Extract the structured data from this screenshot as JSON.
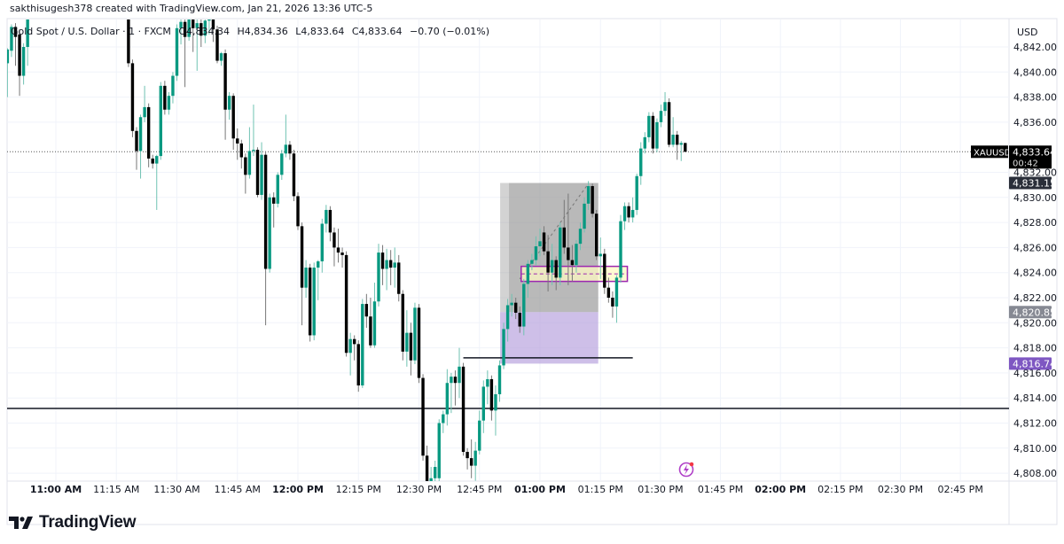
{
  "header": {
    "attribution": "sakthisugesh378 created with TradingView.com, Jan 21, 2026 13:36 UTC-5"
  },
  "legend": {
    "symbol_description": "Gold Spot / U.S. Dollar · 1 · FXCM",
    "open": "O4,834.34",
    "high": "H4,834.36",
    "low": "L4,833.64",
    "close": "C4,833.64",
    "change": "−0.70 (−0.01%)"
  },
  "price_axis": {
    "currency": "USD",
    "ticks": [
      "4,842.00",
      "4,840.00",
      "4,838.00",
      "4,836.00",
      "4,832.00",
      "4,830.00",
      "4,828.00",
      "4,826.00",
      "4,824.00",
      "4,822.00",
      "4,820.00",
      "4,818.00",
      "4,816.00",
      "4,814.00",
      "4,812.00",
      "4,810.00",
      "4,808.00"
    ],
    "current_price_label": {
      "symbol": "XAUUSD",
      "price": "4,833.64",
      "countdown": "00:42"
    },
    "labels": [
      {
        "text": "4,831.15",
        "color": "#2a2e39"
      },
      {
        "text": "4,820.85",
        "color": "#868993"
      },
      {
        "text": "4,816.74",
        "color": "#7e57c2"
      }
    ]
  },
  "time_axis": {
    "ticks": [
      {
        "label": "11:00 AM",
        "bold": true
      },
      {
        "label": "11:15 AM",
        "bold": false
      },
      {
        "label": "11:30 AM",
        "bold": false
      },
      {
        "label": "11:45 AM",
        "bold": false
      },
      {
        "label": "12:00 PM",
        "bold": true
      },
      {
        "label": "12:15 PM",
        "bold": false
      },
      {
        "label": "12:30 PM",
        "bold": false
      },
      {
        "label": "12:45 PM",
        "bold": false
      },
      {
        "label": "01:00 PM",
        "bold": true
      },
      {
        "label": "01:15 PM",
        "bold": false
      },
      {
        "label": "01:30 PM",
        "bold": false
      },
      {
        "label": "01:45 PM",
        "bold": false
      },
      {
        "label": "02:00 PM",
        "bold": true
      },
      {
        "label": "02:15 PM",
        "bold": false
      },
      {
        "label": "02:30 PM",
        "bold": false
      },
      {
        "label": "02:45 PM",
        "bold": false
      }
    ]
  },
  "footer": {
    "brand": "TradingView",
    "logo_icon": "tradingview-logo-icon"
  },
  "alert_icon": "lightning-alert-icon",
  "colors": {
    "up": "#089981",
    "down": "#000000",
    "grid": "#f0f3fa",
    "position_box": "#9e9e9e",
    "stop_box": "#b39ddb",
    "zone_fill": "#fff9c4",
    "zone_border": "#9c27b0"
  },
  "chart_data": {
    "type": "candlestick",
    "symbol": "XAUUSD",
    "interval": "1",
    "x_range": [
      "10:48",
      "14:50"
    ],
    "ylim": [
      4807.4,
      4844.2
    ],
    "grid": true,
    "candle_format": [
      "time",
      "open",
      "high",
      "low",
      "close"
    ],
    "candles": [
      [
        "10:48",
        4840.7,
        4841.9,
        4838.0,
        4841.8
      ],
      [
        "10:49",
        4841.7,
        4843.8,
        4841.2,
        4843.6
      ],
      [
        "10:50",
        4843.6,
        4843.9,
        4840.5,
        4842.8
      ],
      [
        "10:51",
        4843.0,
        4843.4,
        4838.1,
        4839.7
      ],
      [
        "10:52",
        4839.7,
        4842.3,
        4839.0,
        4842.0
      ],
      [
        "10:53",
        4842.0,
        4844.6,
        4840.5,
        4844.5
      ],
      [
        "11:18",
        4844.6,
        4845.0,
        4840.4,
        4840.7
      ],
      [
        "11:19",
        4840.7,
        4841.0,
        4834.8,
        4835.3
      ],
      [
        "11:20",
        4835.3,
        4835.6,
        4832.2,
        4833.7
      ],
      [
        "11:21",
        4833.7,
        4836.6,
        4831.5,
        4836.4
      ],
      [
        "11:22",
        4836.4,
        4838.9,
        4836.0,
        4837.2
      ],
      [
        "11:23",
        4837.2,
        4837.5,
        4832.4,
        4833.1
      ],
      [
        "11:24",
        4833.1,
        4833.4,
        4832.3,
        4832.7
      ],
      [
        "11:25",
        4832.7,
        4833.4,
        4829.0,
        4833.3
      ],
      [
        "11:26",
        4833.3,
        4839.2,
        4833.0,
        4838.9
      ],
      [
        "11:27",
        4838.9,
        4839.3,
        4836.6,
        4837.0
      ],
      [
        "11:28",
        4837.0,
        4838.4,
        4836.6,
        4838.1
      ],
      [
        "11:29",
        4838.1,
        4840.0,
        4837.5,
        4839.7
      ],
      [
        "11:30",
        4839.7,
        4843.8,
        4839.3,
        4843.5
      ],
      [
        "11:31",
        4843.5,
        4844.8,
        4842.2,
        4844.0
      ],
      [
        "11:32",
        4844.0,
        4844.6,
        4838.8,
        4842.8
      ],
      [
        "11:33",
        4842.8,
        4844.5,
        4842.5,
        4844.3
      ],
      [
        "11:34",
        4844.3,
        4844.9,
        4841.6,
        4843.5
      ],
      [
        "11:35",
        4843.5,
        4844.4,
        4840.1,
        4843.9
      ],
      [
        "11:36",
        4843.9,
        4844.2,
        4842.0,
        4842.9
      ],
      [
        "11:37",
        4842.9,
        4844.5,
        4842.3,
        4844.1
      ],
      [
        "11:38",
        4844.1,
        4844.9,
        4843.0,
        4844.4
      ],
      [
        "11:39",
        4844.4,
        4844.8,
        4842.4,
        4843.4
      ],
      [
        "11:40",
        4843.4,
        4843.7,
        4840.7,
        4840.9
      ],
      [
        "11:41",
        4840.9,
        4841.6,
        4840.5,
        4841.5
      ],
      [
        "11:42",
        4841.5,
        4841.8,
        4834.6,
        4837.0
      ],
      [
        "11:43",
        4837.0,
        4838.4,
        4836.2,
        4838.1
      ],
      [
        "11:44",
        4838.1,
        4838.3,
        4833.8,
        4834.7
      ],
      [
        "11:45",
        4834.7,
        4835.5,
        4833.0,
        4834.3
      ],
      [
        "11:46",
        4834.3,
        4834.6,
        4832.3,
        4833.2
      ],
      [
        "11:47",
        4833.2,
        4833.5,
        4830.3,
        4831.8
      ],
      [
        "11:48",
        4831.8,
        4835.6,
        4831.5,
        4833.7
      ],
      [
        "11:49",
        4833.7,
        4837.4,
        4833.3,
        4833.8
      ],
      [
        "11:50",
        4833.8,
        4834.0,
        4830.0,
        4830.2
      ],
      [
        "11:51",
        4830.2,
        4834.4,
        4829.8,
        4833.4
      ],
      [
        "11:52",
        4833.4,
        4833.7,
        4819.8,
        4824.3
      ],
      [
        "11:53",
        4824.3,
        4830.3,
        4824.0,
        4830.0
      ],
      [
        "11:54",
        4830.0,
        4830.4,
        4827.6,
        4829.5
      ],
      [
        "11:55",
        4829.5,
        4832.0,
        4829.2,
        4831.8
      ],
      [
        "11:56",
        4831.8,
        4833.8,
        4831.4,
        4833.5
      ],
      [
        "11:57",
        4833.5,
        4836.6,
        4833.2,
        4834.2
      ],
      [
        "11:58",
        4834.2,
        4834.5,
        4833.0,
        4833.5
      ],
      [
        "11:59",
        4833.5,
        4833.8,
        4829.7,
        4830.1
      ],
      [
        "12:00",
        4830.1,
        4830.4,
        4827.4,
        4827.7
      ],
      [
        "12:01",
        4827.7,
        4828.0,
        4819.8,
        4822.8
      ],
      [
        "12:02",
        4822.8,
        4825.0,
        4822.0,
        4824.4
      ],
      [
        "12:03",
        4824.4,
        4824.7,
        4818.5,
        4819.0
      ],
      [
        "12:04",
        4819.0,
        4824.8,
        4818.6,
        4824.4
      ],
      [
        "12:05",
        4824.4,
        4825.0,
        4821.8,
        4824.9
      ],
      [
        "12:06",
        4824.9,
        4828.3,
        4824.0,
        4827.9
      ],
      [
        "12:07",
        4827.9,
        4829.4,
        4827.2,
        4829.0
      ],
      [
        "12:08",
        4829.0,
        4829.3,
        4826.5,
        4827.2
      ],
      [
        "12:09",
        4827.2,
        4827.6,
        4824.5,
        4826.0
      ],
      [
        "12:10",
        4826.0,
        4827.5,
        4824.8,
        4825.6
      ],
      [
        "12:11",
        4825.6,
        4826.0,
        4824.4,
        4825.4
      ],
      [
        "12:12",
        4825.4,
        4825.7,
        4817.3,
        4817.6
      ],
      [
        "12:13",
        4817.6,
        4819.2,
        4815.8,
        4818.7
      ],
      [
        "12:14",
        4818.7,
        4819.0,
        4817.0,
        4818.3
      ],
      [
        "12:15",
        4818.3,
        4818.6,
        4814.5,
        4815.0
      ],
      [
        "12:16",
        4815.0,
        4821.9,
        4814.8,
        4821.5
      ],
      [
        "12:17",
        4821.5,
        4822.3,
        4819.6,
        4820.5
      ],
      [
        "12:18",
        4820.5,
        4822.0,
        4818.0,
        4818.2
      ],
      [
        "12:19",
        4818.2,
        4823.2,
        4818.0,
        4821.7
      ],
      [
        "12:20",
        4821.7,
        4826.3,
        4821.3,
        4825.6
      ],
      [
        "12:21",
        4825.6,
        4826.2,
        4823.0,
        4824.3
      ],
      [
        "12:22",
        4824.3,
        4825.9,
        4822.6,
        4825.0
      ],
      [
        "12:23",
        4825.0,
        4825.8,
        4823.0,
        4824.4
      ],
      [
        "12:24",
        4824.4,
        4826.0,
        4822.8,
        4824.8
      ],
      [
        "12:25",
        4824.8,
        4825.4,
        4821.7,
        4822.3
      ],
      [
        "12:26",
        4822.3,
        4822.6,
        4817.0,
        4817.7
      ],
      [
        "12:27",
        4817.7,
        4821.0,
        4816.5,
        4819.2
      ],
      [
        "12:28",
        4819.2,
        4820.0,
        4815.8,
        4817.0
      ],
      [
        "12:29",
        4817.0,
        4821.6,
        4816.7,
        4821.2
      ],
      [
        "12:30",
        4821.2,
        4821.5,
        4815.2,
        4815.6
      ],
      [
        "12:31",
        4815.6,
        4815.9,
        4809.0,
        4809.4
      ],
      [
        "12:32",
        4809.4,
        4810.2,
        4806.5,
        4807.2
      ],
      [
        "12:33",
        4807.2,
        4808.5,
        4806.8,
        4807.6
      ],
      [
        "12:34",
        4807.6,
        4809.0,
        4807.0,
        4808.5
      ],
      [
        "12:35",
        4807.6,
        4812.3,
        4807.3,
        4812.0
      ],
      [
        "12:36",
        4812.0,
        4813.0,
        4811.2,
        4812.7
      ],
      [
        "12:37",
        4812.7,
        4816.3,
        4811.8,
        4815.2
      ],
      [
        "12:38",
        4815.2,
        4816.0,
        4812.8,
        4815.7
      ],
      [
        "12:39",
        4815.7,
        4816.2,
        4813.4,
        4815.2
      ],
      [
        "12:40",
        4815.2,
        4818.0,
        4814.0,
        4816.5
      ],
      [
        "12:41",
        4816.5,
        4816.8,
        4809.4,
        4809.7
      ],
      [
        "12:42",
        4809.7,
        4810.0,
        4808.3,
        4809.2
      ],
      [
        "12:43",
        4809.2,
        4810.7,
        4807.6,
        4808.6
      ],
      [
        "12:44",
        4808.6,
        4810.5,
        4807.4,
        4809.8
      ],
      [
        "12:45",
        4809.8,
        4813.0,
        4809.5,
        4812.2
      ],
      [
        "12:46",
        4812.2,
        4815.4,
        4811.2,
        4814.9
      ],
      [
        "12:47",
        4814.9,
        4816.2,
        4813.5,
        4815.5
      ],
      [
        "12:48",
        4815.5,
        4815.8,
        4812.2,
        4813.0
      ],
      [
        "12:49",
        4813.0,
        4815.0,
        4811.0,
        4814.3
      ],
      [
        "12:50",
        4814.3,
        4817.0,
        4813.7,
        4816.6
      ],
      [
        "12:51",
        4816.6,
        4820.0,
        4816.3,
        4819.5
      ],
      [
        "12:52",
        4819.5,
        4821.9,
        4818.5,
        4821.4
      ],
      [
        "12:53",
        4821.4,
        4822.3,
        4820.5,
        4821.6
      ],
      [
        "12:54",
        4821.6,
        4822.0,
        4820.3,
        4820.8
      ],
      [
        "12:55",
        4820.8,
        4821.3,
        4819.2,
        4819.7
      ],
      [
        "12:56",
        4819.7,
        4823.5,
        4819.0,
        4823.1
      ],
      [
        "12:57",
        4823.1,
        4825.0,
        4822.0,
        4824.7
      ],
      [
        "12:58",
        4824.7,
        4825.5,
        4824.2,
        4825.0
      ],
      [
        "12:59",
        4825.0,
        4826.9,
        4824.6,
        4826.1
      ],
      [
        "13:00",
        4826.1,
        4827.5,
        4825.3,
        4826.5
      ],
      [
        "13:01",
        4827.2,
        4827.7,
        4825.4,
        4825.7
      ],
      [
        "13:02",
        4825.7,
        4827.0,
        4822.5,
        4824.0
      ],
      [
        "13:03",
        4824.0,
        4826.3,
        4823.0,
        4825.0
      ],
      [
        "13:04",
        4825.0,
        4825.3,
        4822.6,
        4823.6
      ],
      [
        "13:05",
        4823.6,
        4828.0,
        4823.0,
        4827.6
      ],
      [
        "13:06",
        4827.6,
        4829.8,
        4825.5,
        4826.0
      ],
      [
        "13:07",
        4826.0,
        4830.3,
        4823.0,
        4825.0
      ],
      [
        "13:08",
        4825.0,
        4826.2,
        4823.3,
        4824.6
      ],
      [
        "13:09",
        4824.6,
        4826.6,
        4824.0,
        4826.3
      ],
      [
        "13:10",
        4826.3,
        4828.0,
        4825.8,
        4827.5
      ],
      [
        "13:11",
        4827.5,
        4830.0,
        4827.2,
        4829.5
      ],
      [
        "13:12",
        4829.5,
        4831.3,
        4829.0,
        4830.9
      ],
      [
        "13:13",
        4830.9,
        4831.1,
        4828.4,
        4828.7
      ],
      [
        "13:14",
        4828.7,
        4829.0,
        4825.0,
        4825.3
      ],
      [
        "13:15",
        4825.3,
        4826.8,
        4823.5,
        4825.5
      ],
      [
        "13:16",
        4825.5,
        4825.9,
        4822.3,
        4822.8
      ],
      [
        "13:17",
        4822.8,
        4823.6,
        4821.6,
        4822.0
      ],
      [
        "13:18",
        4822.0,
        4822.5,
        4820.4,
        4821.3
      ],
      [
        "13:19",
        4821.3,
        4823.8,
        4820.0,
        4823.6
      ],
      [
        "13:20",
        4823.6,
        4828.6,
        4823.2,
        4828.1
      ],
      [
        "13:21",
        4828.1,
        4829.6,
        4827.4,
        4829.3
      ],
      [
        "13:22",
        4829.3,
        4829.6,
        4828.0,
        4828.4
      ],
      [
        "13:23",
        4828.4,
        4830.0,
        4828.0,
        4829.0
      ],
      [
        "13:24",
        4829.0,
        4831.9,
        4828.6,
        4831.7
      ],
      [
        "13:25",
        4831.7,
        4834.4,
        4831.0,
        4833.9
      ],
      [
        "13:26",
        4833.9,
        4835.2,
        4833.5,
        4834.8
      ],
      [
        "13:27",
        4834.8,
        4836.8,
        4834.4,
        4836.5
      ],
      [
        "13:28",
        4836.5,
        4836.8,
        4833.5,
        4833.9
      ],
      [
        "13:29",
        4833.9,
        4836.3,
        4833.6,
        4836.0
      ],
      [
        "13:30",
        4836.0,
        4837.4,
        4835.6,
        4836.9
      ],
      [
        "13:31",
        4836.9,
        4838.4,
        4836.5,
        4837.6
      ],
      [
        "13:32",
        4837.6,
        4837.9,
        4834.0,
        4834.2
      ],
      [
        "13:33",
        4834.2,
        4836.4,
        4834.0,
        4835.0
      ],
      [
        "13:34",
        4835.0,
        4835.3,
        4833.0,
        4834.2
      ],
      [
        "13:35",
        4834.2,
        4834.5,
        4832.9,
        4834.34
      ],
      [
        "13:36",
        4834.34,
        4834.36,
        4833.64,
        4833.64
      ]
    ],
    "drawings": {
      "horizontal_line": {
        "price": 4813.17
      },
      "horizontal_ray": {
        "price": 4817.2,
        "from": "12:41",
        "to": "13:23"
      },
      "position": {
        "from": "12:51",
        "to": "13:14",
        "target": 4831.15,
        "entry": 4820.85,
        "stop": 4816.74
      },
      "zone": {
        "from": "12:56",
        "to": "13:21",
        "top": 4824.5,
        "bottom": 4823.3
      },
      "trend_line": {
        "from": [
          "12:55",
          4823.5
        ],
        "to": [
          "13:12",
          4831.1
        ]
      }
    },
    "current_price": 4833.64
  }
}
